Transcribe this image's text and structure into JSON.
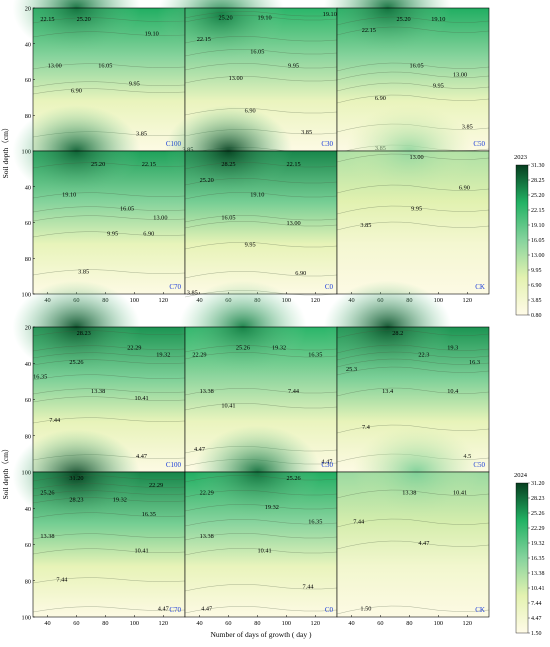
{
  "colors": {
    "low": "#fffbe8",
    "mid1": "#e3f2b0",
    "mid2": "#86d39d",
    "mid3": "#22b264",
    "high": "#063e1f",
    "label_blue": "#1a3bd9"
  },
  "chart_data": [
    {
      "type": "heatmap",
      "title": "2023",
      "ylabel": "Soil depth（cm）",
      "xlabel": "",
      "xlim": [
        30,
        135
      ],
      "ylim": [
        100,
        20
      ],
      "x_ticks": [
        "40",
        "60",
        "80",
        "100",
        "120"
      ],
      "y_ticks": [
        "20",
        "40",
        "60",
        "80",
        "100"
      ],
      "colorbar": {
        "title": "2023",
        "ticks": [
          "31.30",
          "28.25",
          "25.20",
          "22.15",
          "19.10",
          "16.05",
          "13.00",
          "9.95",
          "6.90",
          "3.85",
          "0.80"
        ],
        "min": 0.8,
        "max": 31.3
      },
      "panels": [
        {
          "label": "C100",
          "contours": [
            {
              "value": "22.15",
              "x": 40,
              "y": 26
            },
            {
              "value": "25.20",
              "x": 65,
              "y": 26
            },
            {
              "value": "19.10",
              "x": 112,
              "y": 34
            },
            {
              "value": "13.00",
              "x": 45,
              "y": 52
            },
            {
              "value": "16.05",
              "x": 80,
              "y": 52
            },
            {
              "value": "9.95",
              "x": 100,
              "y": 62
            },
            {
              "value": "6.90",
              "x": 60,
              "y": 66
            },
            {
              "value": "3.85",
              "x": 105,
              "y": 90
            }
          ],
          "peak": {
            "x": 60,
            "y": 20,
            "v": 28
          }
        },
        {
          "label": "C30",
          "contours": [
            {
              "value": "19.10",
              "x": 130,
              "y": 23
            },
            {
              "value": "25.20",
              "x": 58,
              "y": 25
            },
            {
              "value": "19.10",
              "x": 85,
              "y": 25
            },
            {
              "value": "22.15",
              "x": 43,
              "y": 37
            },
            {
              "value": "16.05",
              "x": 80,
              "y": 44
            },
            {
              "value": "9.95",
              "x": 105,
              "y": 52
            },
            {
              "value": "13.00",
              "x": 65,
              "y": 59
            },
            {
              "value": "6.90",
              "x": 75,
              "y": 77
            },
            {
              "value": "3.85",
              "x": 114,
              "y": 89
            },
            {
              "value": "3.85",
              "x": 32,
              "y": 99
            }
          ],
          "peak": {
            "x": 55,
            "y": 24,
            "v": 27
          }
        },
        {
          "label": "C50",
          "contours": [
            {
              "value": "25.20",
              "x": 76,
              "y": 26
            },
            {
              "value": "19.10",
              "x": 100,
              "y": 26
            },
            {
              "value": "22.15",
              "x": 52,
              "y": 32
            },
            {
              "value": "16.05",
              "x": 85,
              "y": 52
            },
            {
              "value": "13.00",
              "x": 115,
              "y": 57
            },
            {
              "value": "9.95",
              "x": 100,
              "y": 63
            },
            {
              "value": "6.90",
              "x": 60,
              "y": 70
            },
            {
              "value": "3.85",
              "x": 120,
              "y": 86
            },
            {
              "value": "3.85",
              "x": 60,
              "y": 98
            }
          ],
          "peak": {
            "x": 65,
            "y": 20,
            "v": 28
          }
        },
        {
          "label": "C70",
          "contours": [
            {
              "value": "25.20",
              "x": 75,
              "y": 27
            },
            {
              "value": "22.15",
              "x": 110,
              "y": 27
            },
            {
              "value": "19.10",
              "x": 55,
              "y": 44
            },
            {
              "value": "16.05",
              "x": 95,
              "y": 52
            },
            {
              "value": "13.00",
              "x": 118,
              "y": 57
            },
            {
              "value": "9.95",
              "x": 85,
              "y": 66
            },
            {
              "value": "6.90",
              "x": 110,
              "y": 66
            },
            {
              "value": "3.85",
              "x": 65,
              "y": 87
            }
          ],
          "peak": {
            "x": 60,
            "y": 20,
            "v": 29
          }
        },
        {
          "label": "C0",
          "contours": [
            {
              "value": "28.25",
              "x": 60,
              "y": 27
            },
            {
              "value": "22.15",
              "x": 105,
              "y": 27
            },
            {
              "value": "25.20",
              "x": 45,
              "y": 36
            },
            {
              "value": "19.10",
              "x": 80,
              "y": 44
            },
            {
              "value": "16.05",
              "x": 60,
              "y": 57
            },
            {
              "value": "13.00",
              "x": 105,
              "y": 60
            },
            {
              "value": "9.95",
              "x": 75,
              "y": 72
            },
            {
              "value": "6.90",
              "x": 110,
              "y": 88
            },
            {
              "value": "3.85",
              "x": 35,
              "y": 99
            }
          ],
          "peak": {
            "x": 60,
            "y": 20,
            "v": 31
          }
        },
        {
          "label": "CK",
          "contours": [
            {
              "value": "13.00",
              "x": 85,
              "y": 23
            },
            {
              "value": "6.90",
              "x": 118,
              "y": 40
            },
            {
              "value": "9.95",
              "x": 85,
              "y": 52
            },
            {
              "value": "3.85",
              "x": 50,
              "y": 61
            }
          ],
          "peak": {
            "x": 80,
            "y": 20,
            "v": 15
          }
        }
      ]
    },
    {
      "type": "heatmap",
      "title": "2024",
      "ylabel": "Soil depth（cm）",
      "xlabel": "Number of days of growth ( day )",
      "xlim": [
        30,
        135
      ],
      "ylim": [
        100,
        20
      ],
      "x_ticks": [
        "40",
        "60",
        "80",
        "100",
        "120"
      ],
      "y_ticks": [
        "20",
        "40",
        "60",
        "80",
        "100"
      ],
      "colorbar": {
        "title": "2024",
        "ticks": [
          "31.20",
          "28.23",
          "25.26",
          "22.29",
          "19.32",
          "16.35",
          "13.38",
          "10.41",
          "7.44",
          "4.47",
          "1.50"
        ],
        "min": 1.5,
        "max": 31.2
      },
      "panels": [
        {
          "label": "C100",
          "contours": [
            {
              "value": "28.23",
              "x": 65,
              "y": 23
            },
            {
              "value": "22.29",
              "x": 100,
              "y": 31
            },
            {
              "value": "19.32",
              "x": 120,
              "y": 35
            },
            {
              "value": "25.26",
              "x": 60,
              "y": 39
            },
            {
              "value": "16.35",
              "x": 35,
              "y": 47
            },
            {
              "value": "13.38",
              "x": 75,
              "y": 55
            },
            {
              "value": "10.41",
              "x": 105,
              "y": 59
            },
            {
              "value": "7.44",
              "x": 45,
              "y": 71
            },
            {
              "value": "4.47",
              "x": 105,
              "y": 91
            }
          ],
          "peak": {
            "x": 60,
            "y": 20,
            "v": 30
          }
        },
        {
          "label": "C30",
          "contours": [
            {
              "value": "25.26",
              "x": 70,
              "y": 31
            },
            {
              "value": "19.32",
              "x": 95,
              "y": 31
            },
            {
              "value": "22.29",
              "x": 40,
              "y": 35
            },
            {
              "value": "16.35",
              "x": 120,
              "y": 35
            },
            {
              "value": "7.44",
              "x": 105,
              "y": 55
            },
            {
              "value": "13.38",
              "x": 45,
              "y": 55
            },
            {
              "value": "10.41",
              "x": 60,
              "y": 63
            },
            {
              "value": "4.47",
              "x": 40,
              "y": 87
            },
            {
              "value": "4.47",
              "x": 128,
              "y": 94
            }
          ],
          "peak": {
            "x": 70,
            "y": 20,
            "v": 27
          }
        },
        {
          "label": "C50",
          "contours": [
            {
              "value": "28.2",
              "x": 72,
              "y": 23
            },
            {
              "value": "22.3",
              "x": 90,
              "y": 35
            },
            {
              "value": "19.3",
              "x": 110,
              "y": 31
            },
            {
              "value": "25.3",
              "x": 40,
              "y": 43
            },
            {
              "value": "16.3",
              "x": 125,
              "y": 39
            },
            {
              "value": "13.4",
              "x": 65,
              "y": 55
            },
            {
              "value": "10.4",
              "x": 110,
              "y": 55
            },
            {
              "value": "7.4",
              "x": 50,
              "y": 75
            },
            {
              "value": "4.5",
              "x": 120,
              "y": 91
            }
          ],
          "peak": {
            "x": 65,
            "y": 20,
            "v": 30
          }
        },
        {
          "label": "C70",
          "contours": [
            {
              "value": "31.20",
              "x": 60,
              "y": 23
            },
            {
              "value": "22.29",
              "x": 115,
              "y": 27
            },
            {
              "value": "25.26",
              "x": 40,
              "y": 31
            },
            {
              "value": "28.23",
              "x": 60,
              "y": 35
            },
            {
              "value": "19.32",
              "x": 90,
              "y": 35
            },
            {
              "value": "16.35",
              "x": 110,
              "y": 43
            },
            {
              "value": "13.38",
              "x": 40,
              "y": 55
            },
            {
              "value": "10.41",
              "x": 105,
              "y": 63
            },
            {
              "value": "7.44",
              "x": 50,
              "y": 79
            },
            {
              "value": "4.47",
              "x": 120,
              "y": 95
            }
          ],
          "peak": {
            "x": 60,
            "y": 22,
            "v": 31
          }
        },
        {
          "label": "C0",
          "contours": [
            {
              "value": "25.26",
              "x": 105,
              "y": 23
            },
            {
              "value": "22.29",
              "x": 45,
              "y": 31
            },
            {
              "value": "19.32",
              "x": 90,
              "y": 39
            },
            {
              "value": "16.35",
              "x": 120,
              "y": 47
            },
            {
              "value": "13.38",
              "x": 45,
              "y": 55
            },
            {
              "value": "10.41",
              "x": 85,
              "y": 63
            },
            {
              "value": "7.44",
              "x": 115,
              "y": 83
            },
            {
              "value": "4.47",
              "x": 45,
              "y": 95
            }
          ],
          "peak": {
            "x": 80,
            "y": 20,
            "v": 28
          }
        },
        {
          "label": "CK",
          "contours": [
            {
              "value": "13.38",
              "x": 80,
              "y": 31
            },
            {
              "value": "10.41",
              "x": 115,
              "y": 31
            },
            {
              "value": "7.44",
              "x": 45,
              "y": 47
            },
            {
              "value": "4.47",
              "x": 90,
              "y": 59
            },
            {
              "value": "1.50",
              "x": 50,
              "y": 95
            }
          ],
          "peak": {
            "x": 85,
            "y": 20,
            "v": 17
          }
        }
      ]
    }
  ]
}
